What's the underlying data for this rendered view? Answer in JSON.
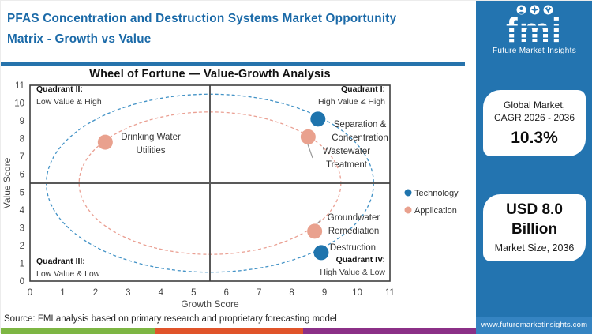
{
  "header": {
    "title_line1": "PFAS Concentration and Destruction Systems Market  Opportunity",
    "title_line2": "Matrix - Growth vs Value"
  },
  "logo": {
    "text": "fmi",
    "subtitle": "Future Market Insights",
    "icons": [
      "person-icon",
      "compass-icon",
      "globe-icon"
    ]
  },
  "sidebar": {
    "card_cagr": {
      "line1": "Global Market,",
      "line2": "CAGR 2026 - 2036",
      "value": "10.3%"
    },
    "card_size": {
      "value_line1": "USD 8.0",
      "value_line2": "Billion",
      "label": "Market Size, 2036"
    },
    "website": "www.futuremarketinsights.com"
  },
  "footer": {
    "source": "Source: FMI analysis based on primary research and proprietary forecasting model"
  },
  "colors": {
    "header_blue": "#1b6aa8",
    "panel_blue": "#2374b0",
    "www_bar_blue": "#3584c2",
    "technology_dot": "#1f74ad",
    "application_dot": "#e9a18e",
    "technology_ring": "#4292c6",
    "application_ring": "#eaa093",
    "strip_green": "#7db643",
    "strip_orange": "#e0542a",
    "strip_purple": "#8b3087"
  },
  "chart_data": {
    "type": "scatter",
    "title": "Wheel of Fortune — Value-Growth Analysis",
    "xlabel": "Growth Score",
    "ylabel": "Value Score",
    "xlim": [
      0,
      11
    ],
    "ylim": [
      0,
      11
    ],
    "x_ticks": [
      0,
      1,
      2,
      3,
      4,
      5,
      6,
      7,
      8,
      9,
      10,
      11
    ],
    "y_ticks": [
      0,
      1,
      2,
      3,
      4,
      5,
      6,
      7,
      8,
      9,
      10,
      11
    ],
    "grid": false,
    "center": {
      "x": 5.5,
      "y": 5.5
    },
    "quadrant_labels": [
      {
        "id": "q1",
        "pos": "top-right",
        "name": "Quadrant I:",
        "desc": "High Value & High"
      },
      {
        "id": "q2",
        "pos": "top-left",
        "name": "Quadrant II:",
        "desc": "Low Value & High"
      },
      {
        "id": "q3",
        "pos": "bottom-left",
        "name": "Quadrant III:",
        "desc": "Low Value & Low"
      },
      {
        "id": "q4",
        "pos": "bottom-right",
        "name": "Quadrant IV:",
        "desc": "High Value & Low"
      }
    ],
    "series": [
      {
        "name": "Technology",
        "color": "#1f74ad",
        "ring_radius": 5,
        "ring_color": "#4292c6",
        "points": [
          {
            "label": "Separation & Concentration",
            "x": 8.8,
            "y": 9.1
          },
          {
            "label": "Destruction",
            "x": 8.9,
            "y": 1.6
          }
        ]
      },
      {
        "name": "Application",
        "color": "#e9a18e",
        "ring_radius": 4,
        "ring_color": "#eaa093",
        "points": [
          {
            "label": "Drinking Water Utilities",
            "x": 2.3,
            "y": 7.8
          },
          {
            "label": "Wastewater Treatment",
            "x": 8.5,
            "y": 8.1
          },
          {
            "label": "Groundwater Remediation",
            "x": 8.7,
            "y": 2.8
          }
        ]
      }
    ],
    "legend": {
      "position": "right-center",
      "items": [
        "Technology",
        "Application"
      ]
    }
  }
}
